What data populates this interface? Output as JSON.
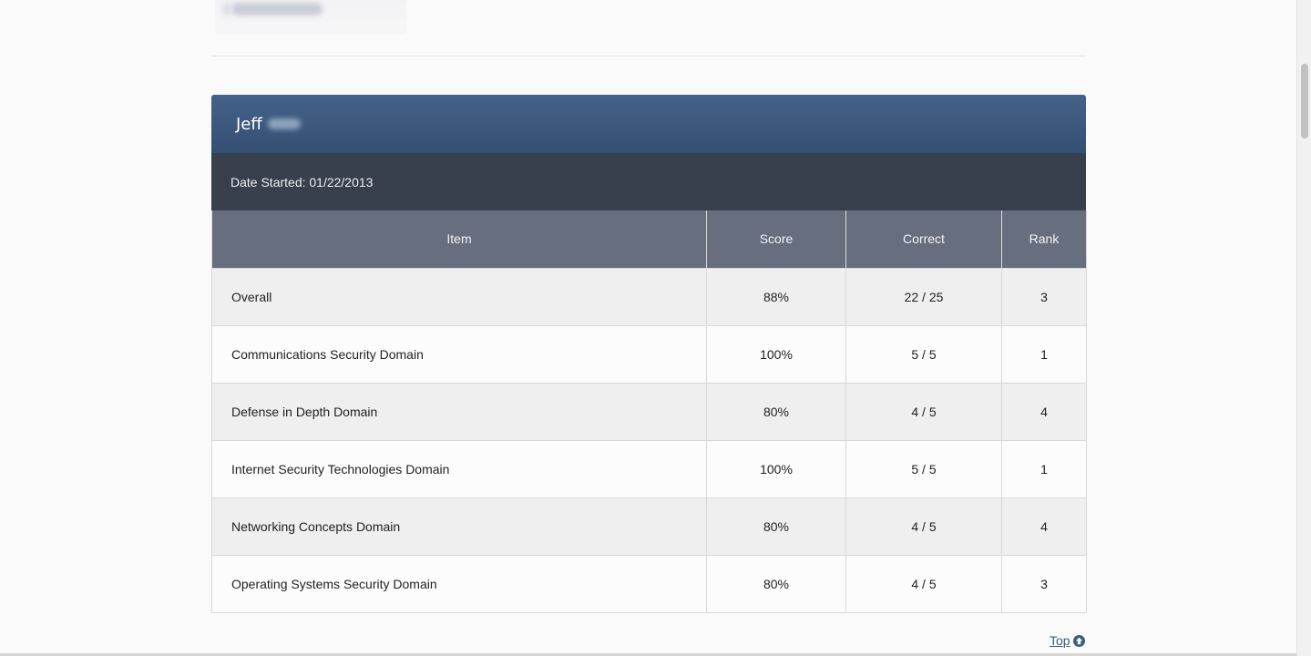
{
  "panel": {
    "name": "Jeff",
    "date_started": "Date Started: 01/22/2013"
  },
  "table": {
    "headers": [
      "Item",
      "Score",
      "Correct",
      "Rank"
    ],
    "rows": [
      {
        "item": "Overall",
        "score": "88%",
        "correct": "22 / 25",
        "rank": "3"
      },
      {
        "item": "Communications Security Domain",
        "score": "100%",
        "correct": "5 / 5",
        "rank": "1"
      },
      {
        "item": "Defense in Depth Domain",
        "score": "80%",
        "correct": "4 / 5",
        "rank": "4"
      },
      {
        "item": "Internet Security Technologies Domain",
        "score": "100%",
        "correct": "5 / 5",
        "rank": "1"
      },
      {
        "item": "Networking Concepts Domain",
        "score": "80%",
        "correct": "4 / 5",
        "rank": "4"
      },
      {
        "item": "Operating Systems Security Domain",
        "score": "80%",
        "correct": "4 / 5",
        "rank": "3"
      }
    ]
  },
  "footer": {
    "top_label": "Top",
    "top_icon": "arrow-up-icon"
  },
  "colors": {
    "panel_header": "#3d5a80",
    "date_bar": "#383f4d",
    "table_header": "#676f7f",
    "link": "#3c5a82"
  }
}
